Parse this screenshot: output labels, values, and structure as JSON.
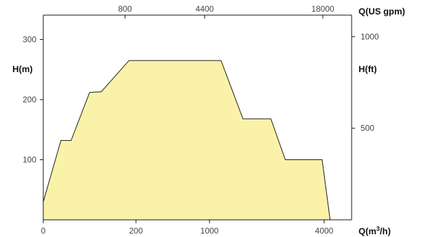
{
  "chart_data": {
    "type": "area",
    "title": "",
    "x_bottom": {
      "title": "Q(m³/h)",
      "scale": "log",
      "ticks": [
        {
          "value": 0,
          "label": "0"
        },
        {
          "value": 200,
          "label": "200"
        },
        {
          "value": 1000,
          "label": "1000"
        },
        {
          "value": 4000,
          "label": "4000"
        }
      ]
    },
    "x_top": {
      "title": "Q(US gpm)",
      "ticks": [
        {
          "value": 800,
          "label": "800"
        },
        {
          "value": 4400,
          "label": "4400"
        },
        {
          "value": 18000,
          "label": "18000"
        }
      ]
    },
    "y_left": {
      "title": "H(m)",
      "range": [
        0,
        330
      ],
      "ticks": [
        {
          "value": 100,
          "label": "100"
        },
        {
          "value": 200,
          "label": "200"
        },
        {
          "value": 300,
          "label": "300"
        }
      ]
    },
    "y_right": {
      "title": "H(ft)",
      "ticks": [
        {
          "value": 500,
          "label": "500"
        },
        {
          "value": 1000,
          "label": "1000"
        }
      ]
    },
    "grid": false,
    "fill_color": "#fbf2a9",
    "stroke_color": "#1a1a1a",
    "series": [
      {
        "points": [
          {
            "x": 0,
            "y": 30
          },
          {
            "x": 38,
            "y": 132
          },
          {
            "x": 60,
            "y": 132
          },
          {
            "x": 100,
            "y": 212
          },
          {
            "x": 125,
            "y": 213
          },
          {
            "x": 185,
            "y": 265
          },
          {
            "x": 1150,
            "y": 265
          },
          {
            "x": 1500,
            "y": 168
          },
          {
            "x": 2100,
            "y": 168
          },
          {
            "x": 2500,
            "y": 100
          },
          {
            "x": 3900,
            "y": 100
          },
          {
            "x": 4300,
            "y": 0
          }
        ]
      }
    ]
  }
}
